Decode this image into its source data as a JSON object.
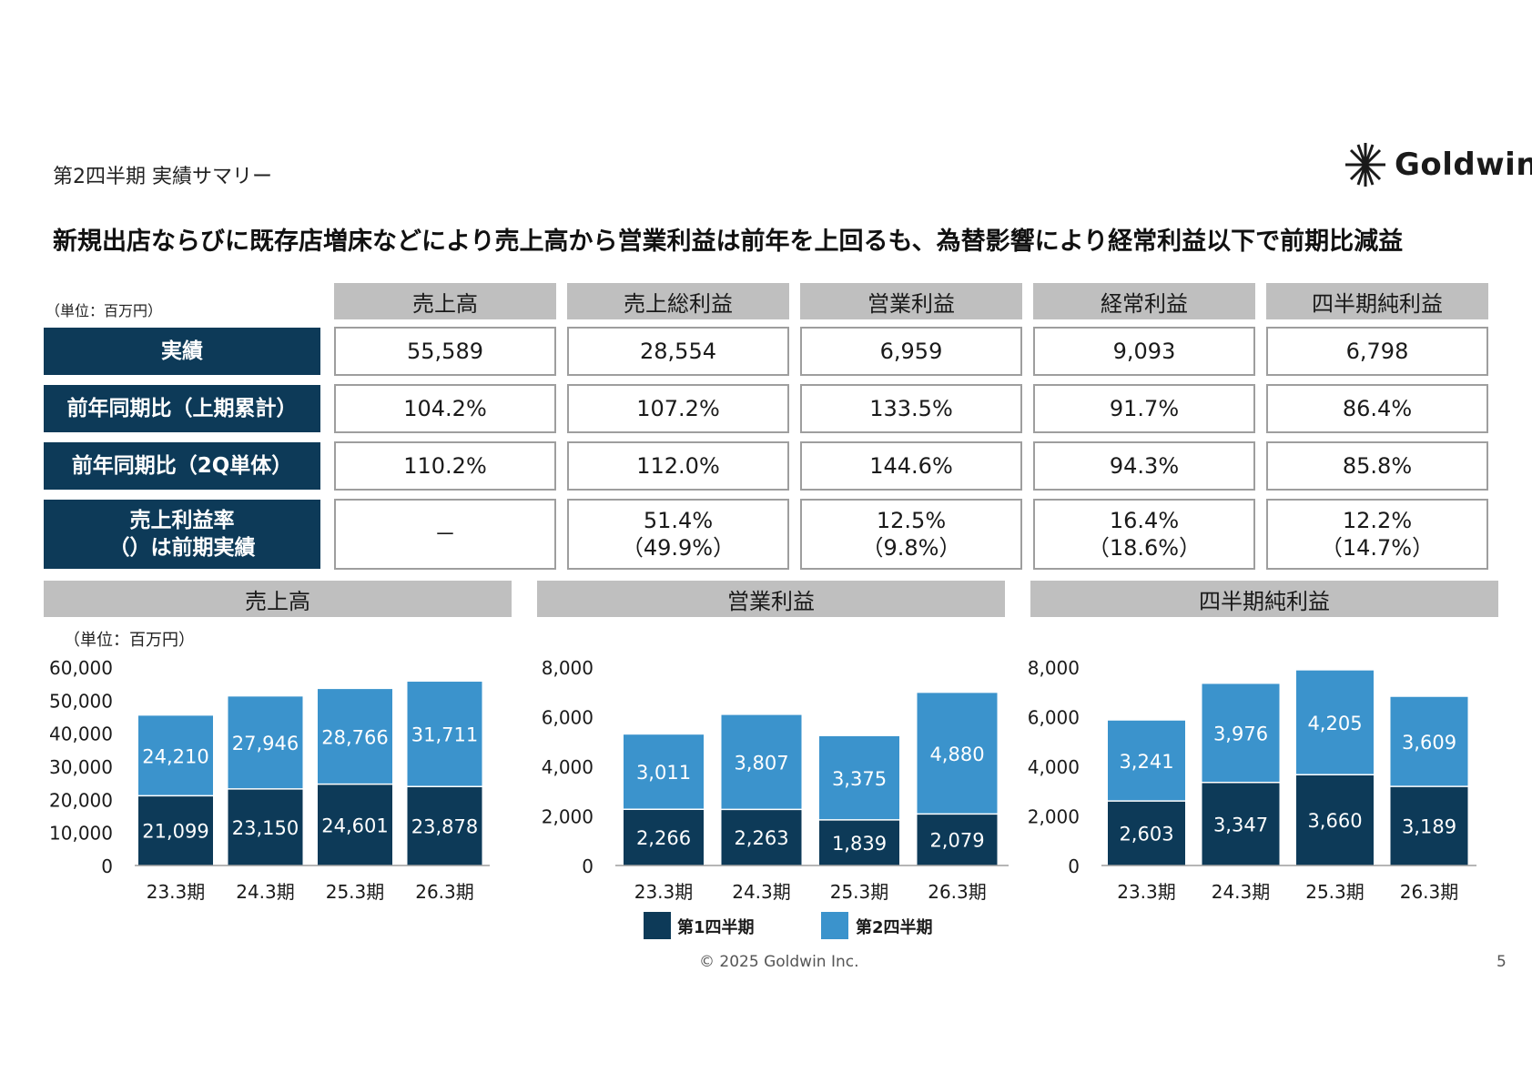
{
  "header": {
    "subtitle": "第2四半期 実績サマリー",
    "headline": "新規出店ならびに既存店増床などにより売上高から営業利益は前年を上回るも、為替影響により経常利益以下で前期比減益",
    "logo_text": "Goldwin",
    "logo_icon": "goldwin-logo-icon"
  },
  "table": {
    "unit": "（単位：百万円）",
    "columns": [
      "売上高",
      "売上総利益",
      "営業利益",
      "経常利益",
      "四半期純利益"
    ],
    "rows": [
      {
        "label": "実績",
        "cells": [
          "55,589",
          "28,554",
          "6,959",
          "9,093",
          "6,798"
        ]
      },
      {
        "label": "前年同期比（上期累計）",
        "cells": [
          "104.2%",
          "107.2%",
          "133.5%",
          "91.7%",
          "86.4%"
        ]
      },
      {
        "label": "前年同期比（2Q単体）",
        "cells": [
          "110.2%",
          "112.0%",
          "144.6%",
          "94.3%",
          "85.8%"
        ]
      },
      {
        "label_line1": "売上利益率",
        "label_line2": "（）は前期実績",
        "cells": [
          {
            "line1": "－",
            "line2": ""
          },
          {
            "line1": "51.4%",
            "line2": "（49.9%）"
          },
          {
            "line1": "12.5%",
            "line2": "（9.8%）"
          },
          {
            "line1": "16.4%",
            "line2": "（18.6%）"
          },
          {
            "line1": "12.2%",
            "line2": "（14.7%）"
          }
        ]
      }
    ]
  },
  "chart_unit": "（単位：百万円）",
  "colors": {
    "q1": "#0d3a58",
    "q2": "#3b93cc",
    "header_gray": "#bfbfbf",
    "row_navy": "#0d3a58"
  },
  "legend": {
    "q1": "第1四半期",
    "q2": "第2四半期"
  },
  "chart_data": [
    {
      "type": "bar",
      "stacked": true,
      "title": "売上高",
      "categories": [
        "23.3期",
        "24.3期",
        "25.3期",
        "26.3期"
      ],
      "series": [
        {
          "name": "第1四半期",
          "values": [
            21099,
            23150,
            24601,
            23878
          ]
        },
        {
          "name": "第2四半期",
          "values": [
            24210,
            27946,
            28766,
            31711
          ]
        }
      ],
      "ylim": [
        0,
        60000
      ],
      "yticks": [
        0,
        10000,
        20000,
        30000,
        40000,
        50000,
        60000
      ],
      "yticklabels": [
        "0",
        "10,000",
        "20,000",
        "30,000",
        "40,000",
        "50,000",
        "60,000"
      ]
    },
    {
      "type": "bar",
      "stacked": true,
      "title": "営業利益",
      "categories": [
        "23.3期",
        "24.3期",
        "25.3期",
        "26.3期"
      ],
      "series": [
        {
          "name": "第1四半期",
          "values": [
            2266,
            2263,
            1839,
            2079
          ]
        },
        {
          "name": "第2四半期",
          "values": [
            3011,
            3807,
            3375,
            4880
          ]
        }
      ],
      "ylim": [
        0,
        8000
      ],
      "yticks": [
        0,
        2000,
        4000,
        6000,
        8000
      ],
      "yticklabels": [
        "0",
        "2,000",
        "4,000",
        "6,000",
        "8,000"
      ]
    },
    {
      "type": "bar",
      "stacked": true,
      "title": "四半期純利益",
      "categories": [
        "23.3期",
        "24.3期",
        "25.3期",
        "26.3期"
      ],
      "series": [
        {
          "name": "第1四半期",
          "values": [
            2603,
            3347,
            3660,
            3189
          ]
        },
        {
          "name": "第2四半期",
          "values": [
            3241,
            3976,
            4205,
            3609
          ]
        }
      ],
      "ylim": [
        0,
        8000
      ],
      "yticks": [
        0,
        2000,
        4000,
        6000,
        8000
      ],
      "yticklabels": [
        "0",
        "2,000",
        "4,000",
        "6,000",
        "8,000"
      ]
    }
  ],
  "footer": {
    "copyright": "© 2025 Goldwin Inc.",
    "page": "5"
  }
}
